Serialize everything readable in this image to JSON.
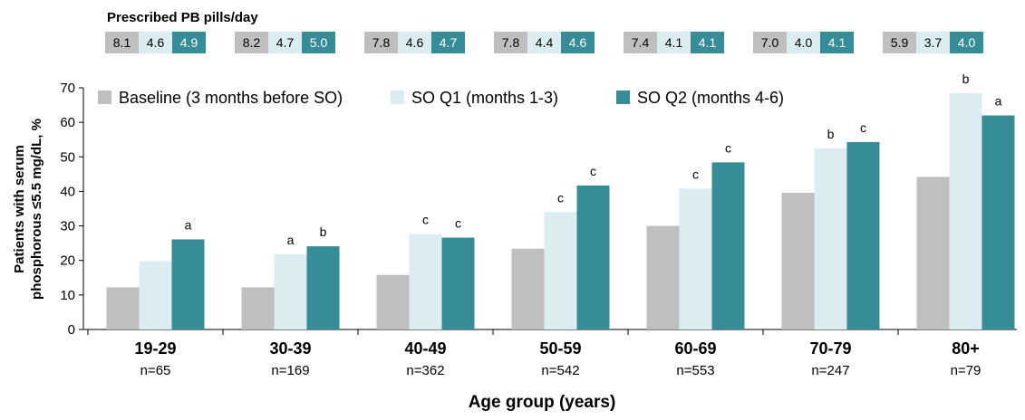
{
  "pills": {
    "title": "Prescribed PB pills/day",
    "groups": [
      [
        "8.1",
        "4.6",
        "4.9"
      ],
      [
        "8.2",
        "4.7",
        "5.0"
      ],
      [
        "7.8",
        "4.6",
        "4.7"
      ],
      [
        "7.8",
        "4.4",
        "4.6"
      ],
      [
        "7.4",
        "4.1",
        "4.1"
      ],
      [
        "7.0",
        "4.0",
        "4.1"
      ],
      [
        "5.9",
        "3.7",
        "4.0"
      ]
    ]
  },
  "chart_data": {
    "type": "bar",
    "title": "",
    "xlabel": "Age group (years)",
    "ylabel_lines": [
      "Patients with serum",
      "phosphorous  ≤5.5 mg/dL, %"
    ],
    "ylim": [
      0,
      70
    ],
    "yticks": [
      0,
      10,
      20,
      30,
      40,
      50,
      60,
      70
    ],
    "grid": false,
    "legend_position": "top",
    "categories": [
      "19-29",
      "30-39",
      "40-49",
      "50-59",
      "60-69",
      "70-79",
      "80+"
    ],
    "category_n": [
      "n=65",
      "n=169",
      "n=362",
      "n=542",
      "n=553",
      "n=247",
      "n=79"
    ],
    "series": [
      {
        "name": "Baseline (3 months before SO)",
        "color": "#bfbfbf",
        "values": [
          12.2,
          12.2,
          15.8,
          23.4,
          30.0,
          39.6,
          44.2
        ],
        "sig": [
          "",
          "",
          "",
          "",
          "",
          "",
          ""
        ]
      },
      {
        "name": "SO Q1 (months 1-3)",
        "color": "#dbedf1",
        "values": [
          19.8,
          21.8,
          27.6,
          34.0,
          40.8,
          52.5,
          68.4
        ],
        "sig": [
          "",
          "a",
          "c",
          "c",
          "c",
          "b",
          "b"
        ]
      },
      {
        "name": "SO Q2 (months 4-6)",
        "color": "#368d98",
        "values": [
          26.1,
          24.1,
          26.6,
          41.7,
          48.4,
          54.3,
          62.0
        ],
        "sig": [
          "a",
          "b",
          "c",
          "c",
          "c",
          "c",
          "a"
        ]
      }
    ]
  }
}
